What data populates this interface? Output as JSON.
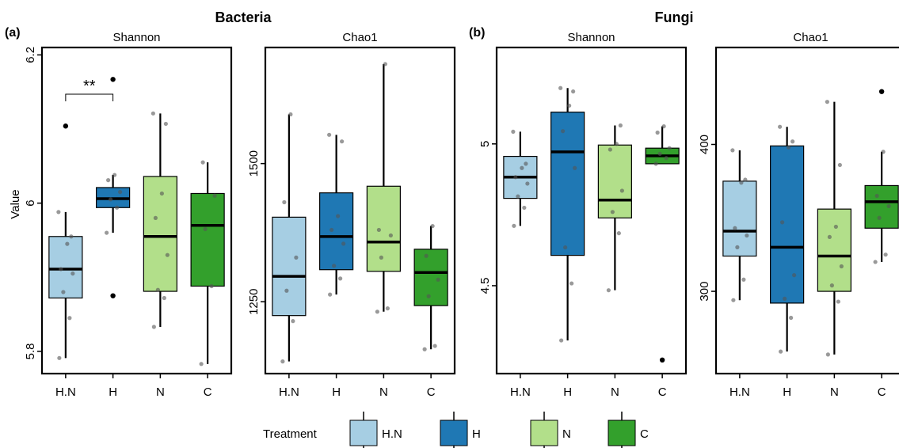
{
  "figure": {
    "groups": [
      {
        "letter": "(a)",
        "title": "Bacteria"
      },
      {
        "letter": "(b)",
        "title": "Fungi"
      }
    ],
    "ylabel": "Value"
  },
  "colors": {
    "H.N": "#a6cee3",
    "H": "#1f78b4",
    "N": "#b2df8a",
    "C": "#33a02c"
  },
  "legend": {
    "title": "Treatment",
    "entries": [
      "H.N",
      "H",
      "N",
      "C"
    ]
  },
  "chart_data": [
    {
      "type": "boxplot",
      "group": "Bacteria",
      "title": "Shannon",
      "categories": [
        "H.N",
        "H",
        "N",
        "C"
      ],
      "ylim": [
        5.77,
        6.21
      ],
      "yticks": [
        5.8,
        6.0,
        6.2
      ],
      "boxes": [
        {
          "q1": 5.872,
          "median": 5.911,
          "q3": 5.955,
          "whisker_low": 5.791,
          "whisker_high": 5.988,
          "points": [
            5.791,
            5.845,
            5.88,
            5.905,
            5.911,
            5.945,
            5.955,
            5.988
          ]
        },
        {
          "q1": 5.994,
          "median": 6.006,
          "q3": 6.021,
          "whisker_low": 5.96,
          "whisker_high": 6.038,
          "points": [
            5.96,
            5.994,
            6.005,
            6.015,
            6.031,
            6.038
          ]
        },
        {
          "q1": 5.881,
          "median": 5.955,
          "q3": 6.036,
          "whisker_low": 5.833,
          "whisker_high": 6.121,
          "points": [
            5.833,
            5.872,
            5.883,
            5.93,
            5.98,
            6.013,
            6.107,
            6.121
          ]
        },
        {
          "q1": 5.888,
          "median": 5.97,
          "q3": 6.013,
          "whisker_low": 5.783,
          "whisker_high": 6.055,
          "points": [
            5.783,
            5.888,
            5.965,
            6.01,
            6.055
          ]
        }
      ],
      "outliers": [
        {
          "box": 0,
          "value": 6.104
        },
        {
          "box": 1,
          "value": 6.167
        },
        {
          "box": 1,
          "value": 5.875
        }
      ],
      "significance": {
        "from": 0,
        "to": 1,
        "label": "**",
        "y": 6.147
      }
    },
    {
      "type": "boxplot",
      "group": "Bacteria",
      "title": "Chao1",
      "categories": [
        "H.N",
        "H",
        "N",
        "C"
      ],
      "ylim": [
        1120,
        1710
      ],
      "yticks": [
        1250,
        1500
      ],
      "boxes": [
        {
          "q1": 1225,
          "median": 1296,
          "q3": 1403,
          "whisker_low": 1142,
          "whisker_high": 1589,
          "points": [
            1142,
            1215,
            1270,
            1330,
            1430,
            1589
          ]
        },
        {
          "q1": 1308,
          "median": 1368,
          "q3": 1447,
          "whisker_low": 1263,
          "whisker_high": 1552,
          "points": [
            1263,
            1292,
            1315,
            1355,
            1380,
            1405,
            1540,
            1552
          ]
        },
        {
          "q1": 1305,
          "median": 1358,
          "q3": 1459,
          "whisker_low": 1232,
          "whisker_high": 1680,
          "points": [
            1232,
            1238,
            1330,
            1370,
            1380,
            1680
          ]
        },
        {
          "q1": 1243,
          "median": 1303,
          "q3": 1345,
          "whisker_low": 1164,
          "whisker_high": 1387,
          "points": [
            1164,
            1170,
            1260,
            1290,
            1333,
            1387
          ]
        }
      ]
    },
    {
      "type": "boxplot",
      "group": "Fungi",
      "title": "Shannon",
      "categories": [
        "H.N",
        "H",
        "N",
        "C"
      ],
      "ylim": [
        4.19,
        5.34
      ],
      "yticks": [
        4.5,
        5.0
      ],
      "boxes": [
        {
          "q1": 4.808,
          "median": 4.883,
          "q3": 4.956,
          "whisker_low": 4.711,
          "whisker_high": 5.043,
          "points": [
            4.711,
            4.775,
            4.815,
            4.86,
            4.883,
            4.915,
            4.93,
            5.043
          ]
        },
        {
          "q1": 4.607,
          "median": 4.972,
          "q3": 5.112,
          "whisker_low": 4.307,
          "whisker_high": 5.197,
          "points": [
            4.307,
            4.508,
            4.635,
            4.915,
            5.045,
            5.135,
            5.185,
            5.197
          ]
        },
        {
          "q1": 4.739,
          "median": 4.802,
          "q3": 4.996,
          "whisker_low": 4.484,
          "whisker_high": 5.065,
          "points": [
            4.484,
            4.685,
            4.76,
            4.835,
            4.98,
            5.0,
            5.065
          ]
        },
        {
          "q1": 4.93,
          "median": 4.958,
          "q3": 4.985,
          "whisker_low": 4.93,
          "whisker_high": 5.062,
          "points": [
            4.93,
            4.95,
            4.965,
            4.985,
            5.04,
            5.062
          ]
        }
      ],
      "outliers": [
        {
          "box": 3,
          "value": 4.238
        }
      ]
    },
    {
      "type": "boxplot",
      "group": "Fungi",
      "title": "Chao1",
      "categories": [
        "H.N",
        "H",
        "N",
        "C"
      ],
      "ylim": [
        244,
        466
      ],
      "yticks": [
        300,
        400
      ],
      "boxes": [
        {
          "q1": 324,
          "median": 341,
          "q3": 375,
          "whisker_low": 294,
          "whisker_high": 396,
          "points": [
            294,
            308,
            330,
            338,
            343,
            374,
            376,
            396
          ]
        },
        {
          "q1": 292,
          "median": 330,
          "q3": 399,
          "whisker_low": 259,
          "whisker_high": 412,
          "points": [
            259,
            282,
            295,
            311,
            347,
            398,
            402,
            412
          ]
        },
        {
          "q1": 300,
          "median": 324,
          "q3": 356,
          "whisker_low": 257,
          "whisker_high": 429,
          "points": [
            257,
            293,
            304,
            317,
            337,
            344,
            386,
            429
          ]
        },
        {
          "q1": 343,
          "median": 361,
          "q3": 372,
          "whisker_low": 320,
          "whisker_high": 395,
          "points": [
            320,
            325,
            350,
            358,
            365,
            395
          ]
        }
      ],
      "outliers": [
        {
          "box": 3,
          "value": 436
        }
      ]
    }
  ]
}
